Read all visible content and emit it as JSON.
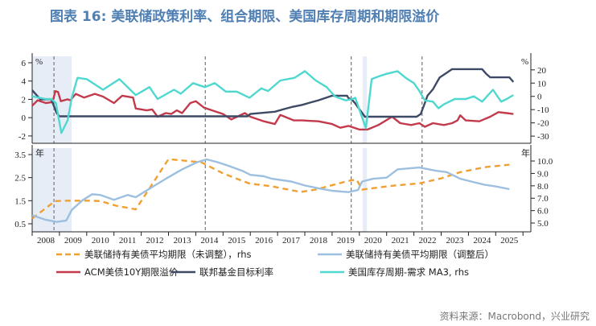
{
  "title": "图表 16: 美联储政策利率、组合期限、美国库存周期和期限溢价",
  "source": "资料来源：Macrobond，兴业研究",
  "chart_data": [
    {
      "type": "line",
      "panel": "top",
      "left_unit": "%",
      "right_unit": "%",
      "ylim_left": [
        -2.8,
        6.7
      ],
      "ylim_right": [
        -35.4,
        30.2
      ],
      "yticks_left": [
        6,
        4,
        2,
        0,
        -2
      ],
      "yticks_right": [
        20,
        10,
        0,
        -10,
        -20,
        -30
      ],
      "series": [
        {
          "name": "ACM美债10Y期限溢价",
          "axis": "left",
          "color": "#c23a4c",
          "x": [
            2008.0,
            2008.2,
            2008.5,
            2008.75,
            2008.85,
            2008.95,
            2009.05,
            2009.3,
            2009.4,
            2009.6,
            2009.9,
            2010.3,
            2010.6,
            2011.0,
            2011.3,
            2011.7,
            2011.8,
            2012.2,
            2012.4,
            2012.6,
            2012.9,
            2013.1,
            2013.3,
            2013.5,
            2013.8,
            2014.0,
            2014.3,
            2014.6,
            2015.0,
            2015.3,
            2015.8,
            2016.0,
            2016.5,
            2016.9,
            2017.1,
            2017.6,
            2017.9,
            2018.5,
            2019.0,
            2019.3,
            2019.6,
            2020.0,
            2020.3,
            2020.7,
            2021.2,
            2021.5,
            2021.9,
            2022.2,
            2022.4,
            2022.7,
            2023.1,
            2023.4,
            2023.6,
            2023.7,
            2023.9,
            2024.4,
            2024.8,
            2025.1,
            2025.4,
            2025.65
          ],
          "y": [
            1.3,
            1.9,
            1.6,
            1.7,
            2.9,
            2.8,
            1.8,
            2.0,
            1.9,
            2.6,
            2.2,
            2.6,
            2.3,
            1.6,
            2.4,
            2.2,
            1.0,
            0.8,
            0.9,
            0.1,
            0.5,
            0.4,
            0.8,
            0.5,
            1.6,
            1.8,
            1.1,
            0.8,
            0.4,
            -0.2,
            0.5,
            0.1,
            -0.4,
            -0.7,
            0.3,
            -0.3,
            -0.3,
            -0.4,
            -0.7,
            -1.1,
            -0.9,
            -1.3,
            -1.3,
            -0.8,
            0.1,
            -0.6,
            -0.8,
            -0.6,
            -1.0,
            -0.6,
            -0.8,
            -0.6,
            -0.3,
            0.25,
            -0.3,
            -0.4,
            0.1,
            0.6,
            0.5,
            0.4
          ]
        },
        {
          "name": "联邦基金目标利率",
          "axis": "left",
          "color": "#3d4a66",
          "x": [
            2008.0,
            2008.3,
            2008.7,
            2008.9,
            2009.0,
            2015.9,
            2016.0,
            2016.9,
            2017.2,
            2017.5,
            2017.9,
            2018.2,
            2018.5,
            2018.75,
            2019.0,
            2019.55,
            2019.6,
            2019.75,
            2019.85,
            2020.2,
            2022.1,
            2022.25,
            2022.4,
            2022.5,
            2022.7,
            2022.85,
            2022.95,
            2023.2,
            2023.4,
            2024.5,
            2024.65,
            2024.8,
            2025.5,
            2025.65
          ],
          "y": [
            3.0,
            2.0,
            2.0,
            0.5,
            0.15,
            0.15,
            0.4,
            0.65,
            0.9,
            1.15,
            1.4,
            1.65,
            1.9,
            2.15,
            2.4,
            2.4,
            2.15,
            1.9,
            1.55,
            0.1,
            0.1,
            0.4,
            1.6,
            2.4,
            3.1,
            3.9,
            4.4,
            4.9,
            5.3,
            5.3,
            4.8,
            4.4,
            4.4,
            3.9
          ]
        },
        {
          "name": "美国库存周期-需求 MA3, rhs",
          "axis": "right",
          "color": "#4fd8cf",
          "x": [
            2008.0,
            2008.5,
            2008.7,
            2008.87,
            2009.07,
            2009.3,
            2009.45,
            2009.66,
            2010.0,
            2010.6,
            2011.2,
            2011.8,
            2012.3,
            2012.6,
            2013.2,
            2013.45,
            2013.9,
            2014.33,
            2014.7,
            2015.1,
            2015.5,
            2015.97,
            2016.4,
            2016.65,
            2017.1,
            2017.62,
            2018.0,
            2018.4,
            2018.8,
            2019.1,
            2019.5,
            2019.75,
            2019.85,
            2020.0,
            2020.24,
            2020.45,
            2020.7,
            2021.0,
            2021.4,
            2021.7,
            2022.0,
            2022.2,
            2022.4,
            2022.7,
            2022.9,
            2023.1,
            2023.5,
            2023.9,
            2024.2,
            2024.5,
            2024.9,
            2025.2,
            2025.4,
            2025.65
          ],
          "y": [
            0,
            -2,
            -2,
            -5,
            -27.6,
            -18,
            -1,
            14,
            13,
            5,
            13,
            1,
            7,
            -2,
            5,
            2,
            10,
            7,
            10,
            3.6,
            3.6,
            -1,
            6,
            4,
            12,
            14,
            19,
            12,
            7,
            0,
            -3,
            -2,
            -1,
            -10,
            -24,
            13,
            15,
            17,
            19,
            14,
            10,
            4,
            -3,
            -4,
            -9,
            -6,
            -2,
            -2,
            0,
            -4,
            5,
            -4,
            -2,
            1
          ]
        }
      ]
    },
    {
      "type": "line",
      "panel": "bottom",
      "left_unit": "年",
      "right_unit": "年",
      "ylim_left": [
        0.15,
        3.78
      ],
      "ylim_right": [
        4.29,
        11.04
      ],
      "yticks_left": [
        3.5,
        2.5,
        1.5,
        0.5
      ],
      "yticks_left_labels": [
        "3.5",
        "2.5",
        "1.5",
        "0.5"
      ],
      "yticks_right": [
        10,
        9,
        8,
        7,
        6,
        5
      ],
      "yticks_right_labels": [
        "10.0",
        "9.0",
        "8.0",
        "7.0",
        "6.0",
        "5.0"
      ],
      "series": [
        {
          "name": "美联储持有美债平均期限（未调整），rhs",
          "axis": "right",
          "color": "#f0a030",
          "dashed": true,
          "x": [
            2008.0,
            2008.84,
            2009.3,
            2010.1,
            2010.5,
            2011.07,
            2011.8,
            2013.0,
            2014.2,
            2015.0,
            2015.95,
            2016.8,
            2017.85,
            2018.4,
            2019.6,
            2019.9,
            2020.1,
            2021.2,
            2022.2,
            2023.0,
            2023.7,
            2024.6,
            2025.5
          ],
          "y": [
            5.37,
            6.77,
            6.8,
            6.8,
            6.77,
            6.4,
            6.1,
            10.15,
            9.9,
            9.0,
            8.2,
            7.95,
            7.5,
            7.7,
            8.4,
            8.5,
            7.7,
            8.0,
            8.2,
            8.6,
            9.1,
            9.5,
            9.7
          ]
        },
        {
          "name": "美联储持有美债平均期限（调整后）",
          "axis": "left",
          "color": "#9dbfe0",
          "x": [
            2008.0,
            2008.5,
            2008.9,
            2009.25,
            2009.45,
            2009.85,
            2010.2,
            2010.5,
            2011.0,
            2011.5,
            2011.8,
            2012.1,
            2012.5,
            2012.9,
            2013.5,
            2014.05,
            2014.4,
            2014.8,
            2015.3,
            2015.7,
            2016.0,
            2016.5,
            2016.8,
            2017.5,
            2018.0,
            2018.5,
            2019.0,
            2019.6,
            2019.95,
            2020.1,
            2020.5,
            2021.0,
            2021.4,
            2021.8,
            2022.2,
            2022.8,
            2023.2,
            2023.7,
            2024.1,
            2024.6,
            2025.0,
            2025.5
          ],
          "y": [
            0.87,
            0.67,
            0.58,
            0.64,
            1.1,
            1.52,
            1.78,
            1.75,
            1.54,
            1.75,
            1.65,
            1.87,
            2.16,
            2.45,
            2.86,
            3.17,
            3.29,
            3.17,
            2.97,
            2.8,
            2.62,
            2.56,
            2.45,
            2.33,
            2.16,
            2.04,
            1.93,
            1.87,
            1.96,
            2.33,
            2.45,
            2.5,
            2.86,
            2.9,
            2.94,
            2.8,
            2.74,
            2.45,
            2.33,
            2.19,
            2.12,
            2.0
          ]
        }
      ]
    }
  ],
  "x_axis": {
    "categories": [
      "2008",
      "2009",
      "2010",
      "2011",
      "2012",
      "2013",
      "2014",
      "2015",
      "2016",
      "2017",
      "2018",
      "2019",
      "2020",
      "2021",
      "2022",
      "2023",
      "2024",
      "2025"
    ]
  },
  "shaded_periods": [
    [
      2008.0,
      2009.45
    ],
    [
      2020.12,
      2020.28
    ]
  ],
  "dashed_markers": [
    2008.8,
    2014.35,
    2019.7,
    2022.3
  ],
  "legend": [
    {
      "label": "美联储持有美债平均期限（未调整），rhs",
      "color": "#f0a030",
      "dashed": true
    },
    {
      "label": "美联储持有美债平均期限（调整后）",
      "color": "#9dbfe0"
    },
    {
      "label": "ACM美债10Y期限溢价",
      "color": "#c23a4c"
    },
    {
      "label": "联邦基金目标利率",
      "color": "#3d4a66"
    },
    {
      "label": "美国库存周期-需求 MA3, rhs",
      "color": "#4fd8cf"
    }
  ]
}
